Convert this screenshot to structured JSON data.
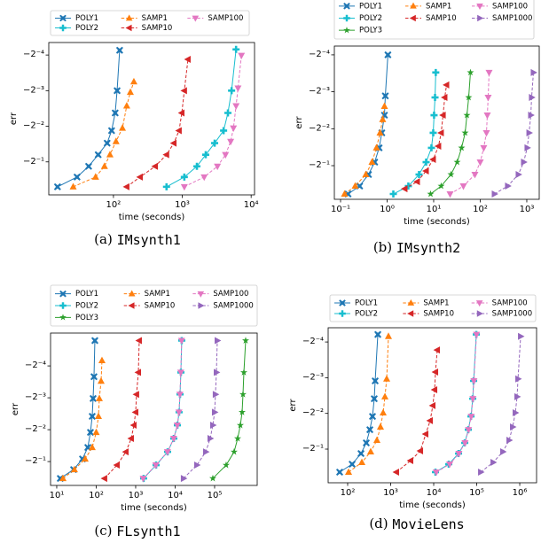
{
  "chart_data": [
    {
      "type": "line",
      "xlabel": "time (seconds)",
      "ylabel": "err",
      "xscale": "log",
      "yscale": "log",
      "xlim": [
        11.5,
        11200
      ],
      "ylim": [
        -0.95,
        -0.049
      ],
      "xticks": [
        {
          "value": 100,
          "label": "10²"
        },
        {
          "value": 1000,
          "label": "10³"
        },
        {
          "value": 10000,
          "label": "10⁴"
        }
      ],
      "yticks": [
        {
          "value": -0.5,
          "label": "−2⁻¹"
        },
        {
          "value": -0.25,
          "label": "−2⁻²"
        },
        {
          "value": -0.125,
          "label": "−2⁻³"
        },
        {
          "value": -0.0625,
          "label": "−2⁻⁴"
        }
      ],
      "subcaption": {
        "label": "(a)",
        "name": "IMsynth1"
      },
      "series": [
        {
          "name": "POLY1",
          "color": "#1f77b4",
          "marker": "x",
          "linestyle": "solid",
          "x": [
            15.4,
            29.6,
            43.6,
            60,
            81,
            94,
            106,
            113,
            123
          ],
          "values": [
            -0.812,
            -0.671,
            -0.545,
            -0.435,
            -0.347,
            -0.272,
            -0.193,
            -0.125,
            -0.057
          ]
        },
        {
          "name": "POLY2",
          "color": "#17becf",
          "marker": "plus",
          "linestyle": "solid",
          "x": [
            590,
            1070,
            1630,
            2190,
            2950,
            3980,
            4600,
            5200,
            6040
          ],
          "values": [
            -0.812,
            -0.671,
            -0.545,
            -0.435,
            -0.347,
            -0.272,
            -0.193,
            -0.125,
            -0.056
          ]
        },
        {
          "name": "SAMP1",
          "color": "#ff7f0e",
          "marker": "tri-up",
          "linestyle": "dashed",
          "x": [
            26,
            55,
            74,
            89,
            109,
            135,
            156,
            176,
            198
          ],
          "values": [
            -0.812,
            -0.671,
            -0.545,
            -0.435,
            -0.336,
            -0.259,
            -0.168,
            -0.129,
            -0.105
          ]
        },
        {
          "name": "SAMP10",
          "color": "#d62728",
          "marker": "tri-left",
          "linestyle": "dashed",
          "x": [
            156,
            244,
            404,
            590,
            754,
            898,
            984,
            1070,
            1210
          ],
          "values": [
            -0.812,
            -0.671,
            -0.545,
            -0.435,
            -0.347,
            -0.272,
            -0.193,
            -0.125,
            -0.068
          ]
        },
        {
          "name": "SAMP100",
          "color": "#e377c2",
          "marker": "tri-down",
          "linestyle": "dashed",
          "x": [
            1070,
            2080,
            3240,
            4240,
            5040,
            5530,
            6040,
            6440,
            7220
          ],
          "values": [
            -0.812,
            -0.671,
            -0.545,
            -0.435,
            -0.336,
            -0.259,
            -0.168,
            -0.119,
            -0.063
          ]
        }
      ]
    },
    {
      "type": "line",
      "xlabel": "time (seconds)",
      "ylabel": "err",
      "xscale": "log",
      "yscale": "log",
      "xlim": [
        0.0736,
        1850
      ],
      "ylim": [
        -0.94,
        -0.053
      ],
      "xticks": [
        {
          "value": 0.1,
          "label": "10⁻¹"
        },
        {
          "value": 1,
          "label": "10⁰"
        },
        {
          "value": 10,
          "label": "10¹"
        },
        {
          "value": 100,
          "label": "10²"
        },
        {
          "value": 1000,
          "label": "10³"
        }
      ],
      "yticks": [
        {
          "value": -0.5,
          "label": "−2⁻¹"
        },
        {
          "value": -0.25,
          "label": "−2⁻²"
        },
        {
          "value": -0.125,
          "label": "−2⁻³"
        },
        {
          "value": -0.0625,
          "label": "−2⁻⁴"
        }
      ],
      "subcaption": {
        "label": "(b)",
        "name": "IMsynth2"
      },
      "series": [
        {
          "name": "POLY1",
          "color": "#1f77b4",
          "marker": "x",
          "linestyle": "solid",
          "x": [
            0.145,
            0.257,
            0.398,
            0.541,
            0.674,
            0.769,
            0.877,
            0.916,
            1.04
          ],
          "values": [
            -0.851,
            -0.733,
            -0.59,
            -0.468,
            -0.358,
            -0.27,
            -0.194,
            -0.135,
            -0.0625
          ]
        },
        {
          "name": "POLY2",
          "color": "#17becf",
          "marker": "plus",
          "linestyle": "solid",
          "x": [
            1.36,
            2.86,
            4.85,
            6.89,
            8.96,
            9.78,
            10.2,
            10.7,
            11.1
          ],
          "values": [
            -0.851,
            -0.733,
            -0.59,
            -0.468,
            -0.358,
            -0.27,
            -0.194,
            -0.139,
            -0.087
          ]
        },
        {
          "name": "POLY3",
          "color": "#2ca02c",
          "marker": "star",
          "linestyle": "solid",
          "x": [
            8.58,
            14.5,
            23.5,
            32,
            39.8,
            47.4,
            51.8,
            56.5,
            61.7
          ],
          "values": [
            -0.851,
            -0.733,
            -0.59,
            -0.468,
            -0.358,
            -0.27,
            -0.194,
            -0.139,
            -0.087
          ]
        },
        {
          "name": "SAMP1",
          "color": "#ff7f0e",
          "marker": "tri-up",
          "linestyle": "dashed",
          "x": [
            0.122,
            0.206,
            0.349,
            0.474,
            0.59,
            0.705,
            0.803,
            0.877
          ],
          "values": [
            -0.851,
            -0.733,
            -0.59,
            -0.468,
            -0.358,
            -0.27,
            -0.21,
            -0.164
          ]
        },
        {
          "name": "SAMP10",
          "color": "#d62728",
          "marker": "tri-left",
          "linestyle": "dashed",
          "x": [
            2.4,
            4.44,
            6.89,
            9.78,
            12.7,
            14.5,
            15.9,
            17.3,
            18.9
          ],
          "values": [
            -0.771,
            -0.675,
            -0.552,
            -0.445,
            -0.347,
            -0.27,
            -0.194,
            -0.139,
            -0.11
          ]
        },
        {
          "name": "SAMP100",
          "color": "#e377c2",
          "marker": "tri-down",
          "linestyle": "dashed",
          "x": [
            22.5,
            43.5,
            76.9,
            100,
            119,
            136,
            142,
            148,
            155
          ],
          "values": [
            -0.851,
            -0.733,
            -0.59,
            -0.468,
            -0.358,
            -0.27,
            -0.194,
            -0.139,
            -0.087
          ]
        },
        {
          "name": "SAMP1000",
          "color": "#9467bd",
          "marker": "tri-right",
          "linestyle": "dashed",
          "x": [
            202,
            389,
            659,
            857,
            1020,
            1120,
            1220,
            1270,
            1390
          ],
          "values": [
            -0.851,
            -0.733,
            -0.59,
            -0.468,
            -0.358,
            -0.27,
            -0.194,
            -0.139,
            -0.087
          ]
        }
      ]
    },
    {
      "type": "line",
      "xlabel": "time (seconds)",
      "ylabel": "err",
      "xscale": "log",
      "yscale": "log",
      "xlim": [
        6.97,
        1200000
      ],
      "ylim": [
        -0.84,
        -0.0306
      ],
      "xticks": [
        {
          "value": 10,
          "label": "10¹"
        },
        {
          "value": 100,
          "label": "10²"
        },
        {
          "value": 1000,
          "label": "10³"
        },
        {
          "value": 10000,
          "label": "10⁴"
        },
        {
          "value": 100000,
          "label": "10⁵"
        }
      ],
      "yticks": [
        {
          "value": -0.5,
          "label": "−2⁻¹"
        },
        {
          "value": -0.25,
          "label": "−2⁻²"
        },
        {
          "value": -0.125,
          "label": "−2⁻³"
        },
        {
          "value": -0.0625,
          "label": "−2⁻⁴"
        }
      ],
      "subcaption": {
        "label": "(c)",
        "name": "FLsynth1"
      },
      "series": [
        {
          "name": "POLY1",
          "color": "#1f77b4",
          "marker": "x",
          "linestyle": "solid",
          "x": [
            12.3,
            26.7,
            44.9,
            61.2,
            71.5,
            79.2,
            83.4,
            87.9,
            92.5
          ],
          "values": [
            -0.721,
            -0.595,
            -0.472,
            -0.368,
            -0.265,
            -0.187,
            -0.127,
            -0.079,
            -0.036
          ]
        },
        {
          "name": "POLY2",
          "color": "#17becf",
          "marker": "plus",
          "linestyle": "solid",
          "x": [
            1590,
            3290,
            6450,
            9250,
            11400,
            12600,
            13300,
            14000,
            14700
          ],
          "values": [
            -0.721,
            -0.54,
            -0.405,
            -0.303,
            -0.227,
            -0.171,
            -0.116,
            -0.072,
            -0.036
          ]
        },
        {
          "name": "POLY3",
          "color": "#2ca02c",
          "marker": "star",
          "linestyle": "solid",
          "x": [
            90200,
            196000,
            312000,
            384000,
            449000,
            498000,
            524000,
            552000,
            612000
          ],
          "values": [
            -0.721,
            -0.54,
            -0.405,
            -0.303,
            -0.227,
            -0.171,
            -0.116,
            -0.072,
            -0.036
          ]
        },
        {
          "name": "SAMP1",
          "color": "#ff7f0e",
          "marker": "tri-up",
          "linestyle": "dashed",
          "x": [
            14.4,
            28.1,
            52.4,
            79.2,
            100,
            114,
            120,
            133,
            140
          ],
          "values": [
            -0.721,
            -0.595,
            -0.472,
            -0.368,
            -0.265,
            -0.187,
            -0.127,
            -0.087,
            -0.0556
          ]
        },
        {
          "name": "SAMP10",
          "color": "#d62728",
          "marker": "tri-left",
          "linestyle": "dashed",
          "x": [
            163,
            337,
            566,
            772,
            902,
            1000,
            1050,
            1170,
            1230
          ],
          "values": [
            -0.721,
            -0.54,
            -0.405,
            -0.303,
            -0.227,
            -0.171,
            -0.116,
            -0.072,
            -0.036
          ]
        },
        {
          "name": "SAMP100",
          "color": "#e377c2",
          "marker": "tri-down",
          "linestyle": "dashed",
          "x": [
            1550,
            3250,
            6400,
            9200,
            11300,
            12500,
            13200,
            13900,
            14600
          ],
          "values": [
            -0.721,
            -0.54,
            -0.405,
            -0.303,
            -0.227,
            -0.171,
            -0.116,
            -0.072,
            -0.036
          ]
        },
        {
          "name": "SAMP1000",
          "color": "#9467bd",
          "marker": "tri-right",
          "linestyle": "dashed",
          "x": [
            16300,
            35500,
            59600,
            77200,
            90200,
            100000,
            105000,
            111000,
            117000
          ],
          "values": [
            -0.721,
            -0.54,
            -0.405,
            -0.303,
            -0.227,
            -0.171,
            -0.116,
            -0.072,
            -0.036
          ]
        }
      ]
    },
    {
      "type": "line",
      "xlabel": "time (seconds)",
      "ylabel": "err",
      "xscale": "log",
      "yscale": "log",
      "xlim": [
        35.2,
        2460000
      ],
      "ylim": [
        -0.961,
        -0.0474
      ],
      "xticks": [
        {
          "value": 100,
          "label": "10²"
        },
        {
          "value": 1000,
          "label": "10³"
        },
        {
          "value": 10000,
          "label": "10⁴"
        },
        {
          "value": 100000,
          "label": "10⁵"
        },
        {
          "value": 1000000,
          "label": "10⁶"
        }
      ],
      "yticks": [
        {
          "value": -0.5,
          "label": "−2⁻¹"
        },
        {
          "value": -0.25,
          "label": "−2⁻²"
        },
        {
          "value": -0.125,
          "label": "−2⁻³"
        },
        {
          "value": -0.0625,
          "label": "−2⁻⁴"
        }
      ],
      "subcaption": {
        "label": "(d)",
        "name": "MovieLens"
      },
      "series": [
        {
          "name": "POLY1",
          "color": "#1f77b4",
          "marker": "x",
          "linestyle": "solid",
          "x": [
            65.2,
            127,
            204,
            271,
            328,
            378,
            415,
            436,
            503
          ],
          "values": [
            -0.782,
            -0.67,
            -0.545,
            -0.443,
            -0.343,
            -0.265,
            -0.188,
            -0.133,
            -0.054
          ]
        },
        {
          "name": "POLY2",
          "color": "#17becf",
          "marker": "plus",
          "linestyle": "solid",
          "x": [
            11000,
            22400,
            37800,
            52700,
            63700,
            73500,
            80800,
            84700,
            97700
          ],
          "values": [
            -0.782,
            -0.67,
            -0.545,
            -0.443,
            -0.343,
            -0.265,
            -0.188,
            -0.133,
            -0.054
          ]
        },
        {
          "name": "SAMP1",
          "color": "#ff7f0e",
          "marker": "tri-up",
          "linestyle": "dashed",
          "x": [
            105,
            214,
            343,
            479,
            579,
            668,
            735,
            808,
            888
          ],
          "values": [
            -0.782,
            -0.647,
            -0.526,
            -0.421,
            -0.325,
            -0.247,
            -0.181,
            -0.128,
            -0.056
          ]
        },
        {
          "name": "SAMP10",
          "color": "#d62728",
          "marker": "tri-left",
          "linestyle": "dashed",
          "x": [
            1360,
            2910,
            4910,
            6520,
            8280,
            9530,
            10500,
            11000,
            12100
          ],
          "values": [
            -0.782,
            -0.625,
            -0.517,
            -0.373,
            -0.288,
            -0.215,
            -0.158,
            -0.112,
            -0.073
          ]
        },
        {
          "name": "SAMP100",
          "color": "#e377c2",
          "marker": "tri-down",
          "linestyle": "dashed",
          "x": [
            11500,
            23500,
            38500,
            53500,
            64500,
            74500,
            81500,
            86000,
            99000
          ],
          "values": [
            -0.782,
            -0.67,
            -0.545,
            -0.443,
            -0.343,
            -0.265,
            -0.188,
            -0.133,
            -0.054
          ]
        },
        {
          "name": "SAMP1000",
          "color": "#9467bd",
          "marker": "tri-right",
          "linestyle": "dashed",
          "x": [
            124000,
            241000,
            405000,
            566000,
            684000,
            789000,
            867000,
            910000,
            1050000
          ],
          "values": [
            -0.782,
            -0.647,
            -0.526,
            -0.421,
            -0.325,
            -0.247,
            -0.181,
            -0.128,
            -0.056
          ]
        }
      ]
    }
  ]
}
